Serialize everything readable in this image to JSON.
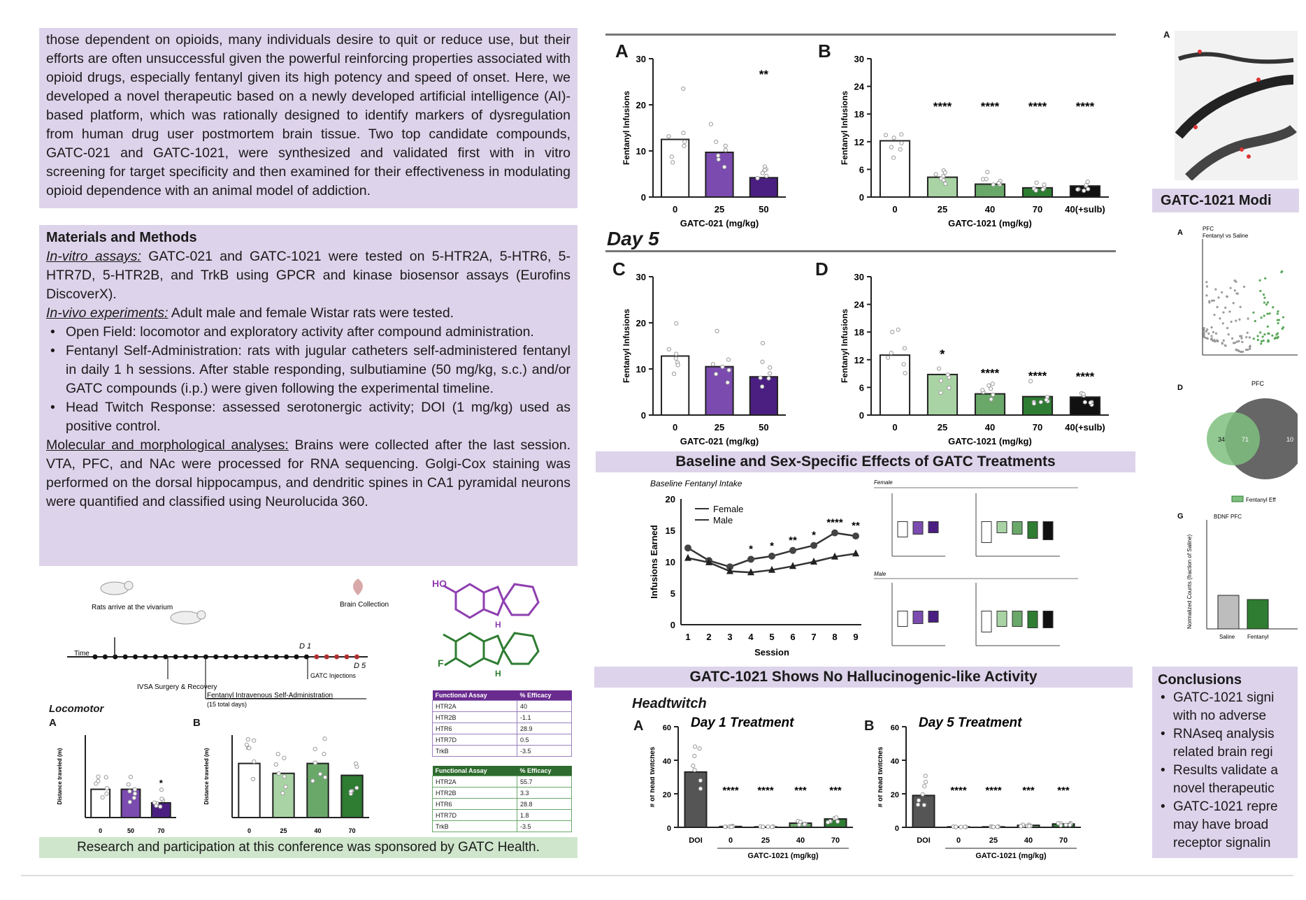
{
  "intro": {
    "text": "those dependent on opioids, many individuals desire to quit or reduce use, but their efforts are often unsuccessful given the powerful reinforcing properties associated with opioid drugs, especially fentanyl given its high potency and speed of onset. Here, we developed a novel therapeutic based on a newly developed artificial intelligence (AI)- based platform, which was rationally designed to identify markers of dysregulation from human drug user postmortem brain tissue. Two top candidate compounds, GATC-021 and GATC-1021, were synthesized and validated first with in vitro screening for target specificity and then examined for their effectiveness in modulating opioid dependence with an animal model of addiction."
  },
  "methods": {
    "title": "Materials and Methods",
    "invitro_label": "In-vitro assays:",
    "invitro_text": " GATC-021 and GATC-1021 were tested on 5-HTR2A, 5-HTR6, 5-HTR7D, 5-HTR2B, and TrkB using GPCR and kinase biosensor assays (Eurofins DiscoverX).",
    "invivo_label": "In-vivo experiments:",
    "invivo_text": " Adult male and female Wistar rats were tested.",
    "bullets": [
      "Open Field: locomotor and exploratory activity after compound administration.",
      "Fentanyl Self-Administration: rats with jugular catheters self-administered fentanyl in daily 1 h sessions. After stable responding, sulbutiamine (50 mg/kg, s.c.) and/or GATC compounds (i.p.) were given following the experimental timeline.",
      "Head Twitch Response: assessed serotonergic activity; DOI (1 mg/kg) used as positive control."
    ],
    "molecular_label": "Molecular and morphological analyses:",
    "molecular_text": " Brains were collected after the last session. VTA, PFC, and NAc were processed for RNA sequencing. Golgi-Cox staining was performed on the dorsal hippocampus, and dendritic spines in CA1 pyramidal neurons were quantified and classified using Neurolucida 360."
  },
  "timeline": {
    "arrive": "Rats arrive at the vivarium",
    "time": "Time",
    "surgery": "IVSA Surgery & Recovery",
    "fsa": "Fentanyl Intravenous Self-Administration",
    "fsa_days": "(15 total days)",
    "injections": "GATC Injections",
    "d1": "D 1",
    "d5": "D 5",
    "brain": "Brain Collection"
  },
  "locomotor": {
    "title": "Locomotor",
    "a": "A",
    "b": "B",
    "a_xlabel": "GATC-021 (mg/kg)",
    "b_xlabel": "GATC-1021 (mg/kg)",
    "ylabel": "Distance traveled (m)",
    "a_cats": [
      "0",
      "50",
      "70"
    ],
    "b_cats": [
      "0",
      "25",
      "40",
      "70"
    ],
    "a_sig": "*"
  },
  "tables": {
    "purple": {
      "header": [
        "Functional Assay",
        "% Efficacy"
      ],
      "rows": [
        [
          "HTR2A",
          "40"
        ],
        [
          "HTR2B",
          "-1.1"
        ],
        [
          "HTR6",
          "28.9"
        ],
        [
          "HTR7D",
          "0.5"
        ],
        [
          "TrkB",
          "-3.5"
        ]
      ]
    },
    "green": {
      "header": [
        "Functional Assay",
        "% Efficacy"
      ],
      "rows": [
        [
          "HTR2A",
          "55.7"
        ],
        [
          "HTR2B",
          "3.3"
        ],
        [
          "HTR6",
          "28.8"
        ],
        [
          "HTR7D",
          "1.8"
        ],
        [
          "TrkB",
          "-3.5"
        ]
      ]
    }
  },
  "sponsor": "Research and participation at this conference was sponsored by GATC Health.",
  "center": {
    "day5": "Day 5",
    "ylabel": "Fentanyl Infusions",
    "panelA": {
      "label": "A",
      "xlabel": "GATC-021 (mg/kg)"
    },
    "panelB": {
      "label": "B",
      "xlabel": "GATC-1021 (mg/kg)"
    },
    "panelC": {
      "label": "C",
      "xlabel": "GATC-021 (mg/kg)"
    },
    "panelD": {
      "label": "D",
      "xlabel": "GATC-1021 (mg/kg)"
    },
    "baseline_title": "Baseline and Sex-Specific Effects of GATC Treatments",
    "baseline_sub": "Baseline Fentanyl Intake",
    "baseline_ylabel": "Infusions Earned",
    "baseline_xlabel": "Session",
    "female": "Female",
    "male": "Male",
    "female_small": "Female",
    "male_small": "Male",
    "headtwitch_title": "GATC-1021 Shows No Hallucinogenic-like Activity",
    "headtwitch": "Headtwitch",
    "ht_a": "A",
    "ht_b": "B",
    "ht_a_title": "Day 1 Treatment",
    "ht_b_title": "Day 5 Treatment",
    "ht_ylabel": "# of head twitches",
    "ht_xlabel": "GATC-1021 (mg/kg)"
  },
  "right": {
    "a": "A",
    "mod_title": "GATC-1021 Modi",
    "pfc_a": "A",
    "pfc_title": "PFC",
    "pfc_sub": "Fentanyl vs Saline",
    "pfc_xlabel": "PFC",
    "d": "D",
    "venn_left": "34",
    "venn_overlap": "71",
    "venn_right": "10",
    "legend": "Fentanyl Eff",
    "g": "G",
    "bdnf": "BDNF PFC",
    "g_ylabel": "Normalized Counts (fraction of Saline)",
    "g_cats": [
      "Saline",
      "Fentanyl"
    ]
  },
  "conclusions": {
    "title": "Conclusions",
    "lines": [
      [
        "GATC-1021 signi",
        "with no adverse"
      ],
      [
        "RNAseq analysis",
        "related brain regi"
      ],
      [
        "Results validate a",
        "novel therapeutic"
      ],
      [
        "GATC-1021 repre",
        "may have broad",
        "receptor signalin"
      ]
    ]
  },
  "chart_data": [
    {
      "type": "bar",
      "title": "",
      "panel": "A",
      "categories": [
        "0",
        "25",
        "50"
      ],
      "values": [
        12.5,
        9.7,
        4.2
      ],
      "ylabel": "Fentanyl Infusions",
      "xlabel": "GATC-021 (mg/kg)",
      "ylim": [
        0,
        30
      ],
      "yticks": [
        0,
        10,
        20,
        30
      ],
      "significance": [
        "",
        "",
        "**"
      ],
      "colors": [
        "#ffffff",
        "#7b4bb0",
        "#4b1f82"
      ]
    },
    {
      "type": "bar",
      "title": "",
      "panel": "B",
      "categories": [
        "0",
        "25",
        "40",
        "70",
        "40(+sulb)"
      ],
      "values": [
        12.2,
        4.3,
        2.8,
        2.0,
        2.4
      ],
      "ylabel": "Fentanyl Infusions",
      "xlabel": "GATC-1021 (mg/kg)",
      "ylim": [
        0,
        30
      ],
      "yticks": [
        0,
        6,
        12,
        18,
        24,
        30
      ],
      "significance": [
        "",
        "****",
        "****",
        "****",
        "****"
      ],
      "colors": [
        "#ffffff",
        "#a9d3a4",
        "#6aa86a",
        "#2e7d32",
        "#111111"
      ]
    },
    {
      "type": "bar",
      "title": "",
      "panel": "C",
      "categories": [
        "0",
        "25",
        "50"
      ],
      "values": [
        12.8,
        10.5,
        8.3
      ],
      "ylabel": "Fentanyl Infusions",
      "xlabel": "GATC-021 (mg/kg)",
      "ylim": [
        0,
        30
      ],
      "yticks": [
        0,
        10,
        20,
        30
      ],
      "significance": [
        "",
        "",
        ""
      ],
      "colors": [
        "#ffffff",
        "#7b4bb0",
        "#4b1f82"
      ]
    },
    {
      "type": "bar",
      "title": "",
      "panel": "D",
      "categories": [
        "0",
        "25",
        "40",
        "70",
        "40(+sulb)"
      ],
      "values": [
        13.0,
        8.8,
        4.6,
        4.0,
        3.9
      ],
      "ylabel": "Fentanyl Infusions",
      "xlabel": "GATC-1021 (mg/kg)",
      "ylim": [
        0,
        30
      ],
      "yticks": [
        0,
        6,
        12,
        18,
        24,
        30
      ],
      "significance": [
        "",
        "*",
        "****",
        "****",
        "****"
      ],
      "colors": [
        "#ffffff",
        "#a9d3a4",
        "#6aa86a",
        "#2e7d32",
        "#111111"
      ]
    },
    {
      "type": "line",
      "title": "Baseline Fentanyl Intake",
      "panel": "baseline",
      "x": [
        1,
        2,
        3,
        4,
        5,
        6,
        7,
        8,
        9
      ],
      "series": [
        {
          "name": "Female",
          "values": [
            12.2,
            10.2,
            9.2,
            10.4,
            10.9,
            11.8,
            12.6,
            14.6,
            14.1
          ]
        },
        {
          "name": "Male",
          "values": [
            10.6,
            9.9,
            8.5,
            8.3,
            8.7,
            9.3,
            10.0,
            10.8,
            11.3
          ]
        }
      ],
      "ylabel": "Infusions Earned",
      "xlabel": "Session",
      "ylim": [
        0,
        20
      ],
      "yticks": [
        0,
        5,
        10,
        15,
        20
      ],
      "significance": [
        "",
        "",
        "",
        "*",
        "*",
        "**",
        "*",
        "****",
        "**"
      ],
      "legend": "top-left"
    },
    {
      "type": "bar",
      "title": "Day 1 Treatment",
      "panel": "Headtwitch A",
      "categories": [
        "DOI",
        "0",
        "25",
        "40",
        "70"
      ],
      "values": [
        33,
        0.5,
        0.3,
        2.5,
        5
      ],
      "ylabel": "# of head twitches",
      "xlabel": "GATC-1021 (mg/kg)",
      "ylim": [
        0,
        60
      ],
      "yticks": [
        0,
        20,
        40,
        60
      ],
      "significance": [
        "",
        "****",
        "****",
        "***",
        "***"
      ],
      "colors": [
        "#555555",
        "#ffffff",
        "#a9d3a4",
        "#6aa86a",
        "#2e7d32"
      ]
    },
    {
      "type": "bar",
      "title": "Day 5 Treatment",
      "panel": "Headtwitch B",
      "categories": [
        "DOI",
        "0",
        "25",
        "40",
        "70"
      ],
      "values": [
        19,
        0.3,
        0.3,
        1.2,
        2
      ],
      "ylabel": "# of head twitches",
      "xlabel": "GATC-1021 (mg/kg)",
      "ylim": [
        0,
        60
      ],
      "yticks": [
        0,
        20,
        40,
        60
      ],
      "significance": [
        "",
        "****",
        "****",
        "***",
        "***"
      ],
      "colors": [
        "#555555",
        "#ffffff",
        "#a9d3a4",
        "#6aa86a",
        "#2e7d32"
      ]
    },
    {
      "type": "bar",
      "title": "",
      "panel": "Locomotor A",
      "categories": [
        "0",
        "50",
        "70"
      ],
      "values": [
        48,
        48,
        25
      ],
      "ylabel": "Distance traveled (m)",
      "xlabel": "GATC-021 (mg/kg)",
      "ylim": [
        0,
        140
      ],
      "significance": [
        "",
        "",
        "*"
      ],
      "colors": [
        "#ffffff",
        "#7b4bb0",
        "#4b1f82"
      ]
    },
    {
      "type": "bar",
      "title": "",
      "panel": "Locomotor B",
      "categories": [
        "0",
        "25",
        "40",
        "70"
      ],
      "values": [
        82,
        67,
        82,
        64
      ],
      "ylabel": "Distance traveled (m)",
      "xlabel": "GATC-1021 (mg/kg)",
      "ylim": [
        0,
        125
      ],
      "significance": [
        "",
        "",
        "",
        ""
      ],
      "colors": [
        "#ffffff",
        "#a9d3a4",
        "#6aa86a",
        "#2e7d32"
      ]
    }
  ]
}
